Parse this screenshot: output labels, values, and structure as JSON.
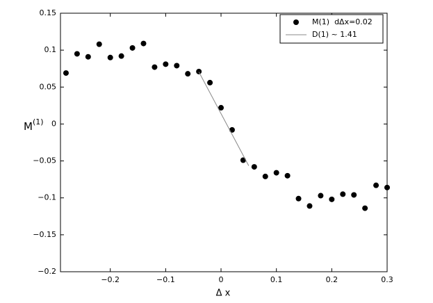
{
  "chart_data": {
    "type": "scatter",
    "xlabel": "Δ x",
    "ylabel": "M",
    "ylabel_sup": "(1)",
    "xlim": [
      -0.29,
      0.3
    ],
    "ylim": [
      -0.2,
      0.15
    ],
    "xticks": [
      {
        "value": -0.2,
        "label": "−0.2"
      },
      {
        "value": -0.1,
        "label": "−0.1"
      },
      0,
      0.1,
      0.2,
      0.3
    ],
    "yticks": [
      {
        "value": -0.2,
        "label": "−0.2"
      },
      {
        "value": -0.15,
        "label": "−0.15"
      },
      {
        "value": -0.1,
        "label": "−0.1"
      },
      {
        "value": -0.05,
        "label": "−0.05"
      },
      0,
      0.05,
      0.1,
      0.15
    ],
    "grid": false,
    "legend": "upper right",
    "series": [
      {
        "name": "M(1)  dΔx=0.02",
        "kind": "points",
        "color": "#000000",
        "x": [
          -0.28,
          -0.26,
          -0.24,
          -0.22,
          -0.2,
          -0.18,
          -0.16,
          -0.14,
          -0.12,
          -0.1,
          -0.08,
          -0.06,
          -0.04,
          -0.02,
          0,
          0.02,
          0.04,
          0.06,
          0.08,
          0.1,
          0.12,
          0.14,
          0.16,
          0.18,
          0.2,
          0.22,
          0.24,
          0.26,
          0.28,
          0.3
        ],
        "values": [
          0.069,
          0.095,
          0.091,
          0.108,
          0.09,
          0.092,
          0.103,
          0.109,
          0.077,
          0.081,
          0.079,
          0.068,
          0.071,
          0.056,
          0.022,
          -0.008,
          -0.049,
          -0.058,
          -0.071,
          -0.066,
          -0.07,
          -0.101,
          -0.111,
          -0.097,
          -0.102,
          -0.095,
          -0.096,
          -0.114,
          -0.083,
          -0.086
        ]
      },
      {
        "name": "D(1) ~ 1.41",
        "kind": "line",
        "color": "#888888",
        "x": [
          -0.04,
          0.05
        ],
        "values": [
          0.0705,
          -0.0565
        ]
      }
    ]
  }
}
